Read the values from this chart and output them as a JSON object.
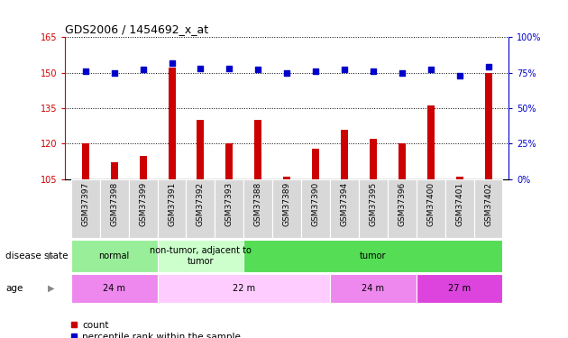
{
  "title": "GDS2006 / 1454692_x_at",
  "samples": [
    "GSM37397",
    "GSM37398",
    "GSM37399",
    "GSM37391",
    "GSM37392",
    "GSM37393",
    "GSM37388",
    "GSM37389",
    "GSM37390",
    "GSM37394",
    "GSM37395",
    "GSM37396",
    "GSM37400",
    "GSM37401",
    "GSM37402"
  ],
  "count_values": [
    120,
    112,
    115,
    152,
    130,
    120,
    130,
    106,
    118,
    126,
    122,
    120,
    136,
    106,
    150
  ],
  "percentile_values": [
    76,
    75,
    77,
    82,
    78,
    78,
    77,
    75,
    76,
    77,
    76,
    75,
    77,
    73,
    79
  ],
  "count_ylim": [
    105,
    165
  ],
  "count_yticks": [
    105,
    120,
    135,
    150,
    165
  ],
  "percentile_ylim": [
    0,
    100
  ],
  "percentile_yticks": [
    0,
    25,
    50,
    75,
    100
  ],
  "bar_color": "#cc0000",
  "dot_color": "#0000cc",
  "disease_state_groups": [
    {
      "label": "normal",
      "start": 0,
      "end": 3,
      "color": "#99ee99"
    },
    {
      "label": "non-tumor, adjacent to\ntumor",
      "start": 3,
      "end": 6,
      "color": "#ccffcc"
    },
    {
      "label": "tumor",
      "start": 6,
      "end": 15,
      "color": "#55dd55"
    }
  ],
  "age_groups": [
    {
      "label": "24 m",
      "start": 0,
      "end": 3,
      "color": "#ee88ee"
    },
    {
      "label": "22 m",
      "start": 3,
      "end": 9,
      "color": "#ffccff"
    },
    {
      "label": "24 m",
      "start": 9,
      "end": 12,
      "color": "#ee88ee"
    },
    {
      "label": "27 m",
      "start": 12,
      "end": 15,
      "color": "#dd44dd"
    }
  ],
  "left_label": "disease state",
  "age_label": "age",
  "legend_count": "count",
  "legend_percentile": "percentile rank within the sample",
  "bar_width": 0.25,
  "dot_size": 5,
  "background_color": "#ffffff",
  "plot_bg_color": "#ffffff",
  "tick_label_bg": "#d8d8d8",
  "tick_color_left": "#cc0000",
  "tick_color_right": "#0000cc",
  "spine_color": "#000000"
}
